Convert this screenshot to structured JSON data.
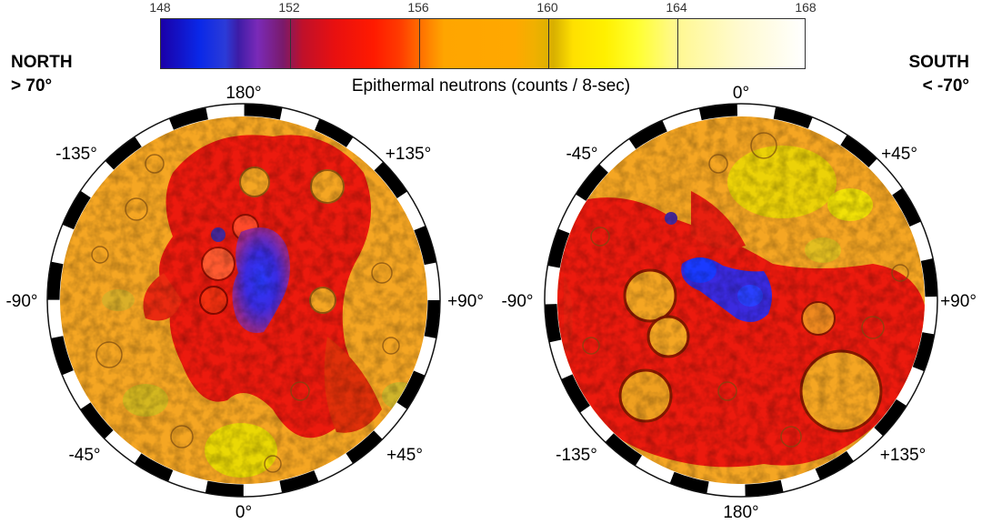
{
  "colorbar": {
    "ticks": [
      "148",
      "152",
      "156",
      "160",
      "164",
      "168"
    ],
    "label": "Epithermal neutrons (counts / 8-sec)"
  },
  "north": {
    "title": "NORTH",
    "subtitle": "> 70°",
    "labels": {
      "top": "180°",
      "top_left": "-135°",
      "top_right": "+135°",
      "left": "-90°",
      "right": "+90°",
      "bottom_left": "-45°",
      "bottom_right": "+45°",
      "bottom": "0°"
    }
  },
  "south": {
    "title": "SOUTH",
    "subtitle": "< -70°",
    "labels": {
      "top": "0°",
      "top_left": "-45°",
      "top_right": "+45°",
      "left": "-90°",
      "right": "+90°",
      "bottom_left": "-135°",
      "bottom_right": "+135°",
      "bottom": "180°"
    }
  },
  "colors": {
    "low": "#1a2ad8",
    "mid_low": "#6a2ab0",
    "mid": "#e81a10",
    "high": "#f5a623",
    "higher": "#e8d000",
    "max": "#ffffff"
  }
}
